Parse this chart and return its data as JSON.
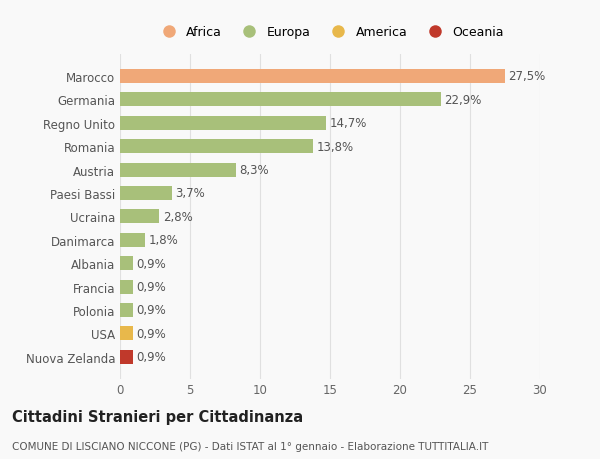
{
  "categories": [
    "Nuova Zelanda",
    "USA",
    "Polonia",
    "Francia",
    "Albania",
    "Danimarca",
    "Ucraina",
    "Paesi Bassi",
    "Austria",
    "Romania",
    "Regno Unito",
    "Germania",
    "Marocco"
  ],
  "values": [
    0.9,
    0.9,
    0.9,
    0.9,
    0.9,
    1.8,
    2.8,
    3.7,
    8.3,
    13.8,
    14.7,
    22.9,
    27.5
  ],
  "labels": [
    "0,9%",
    "0,9%",
    "0,9%",
    "0,9%",
    "0,9%",
    "1,8%",
    "2,8%",
    "3,7%",
    "8,3%",
    "13,8%",
    "14,7%",
    "22,9%",
    "27,5%"
  ],
  "colors": [
    "#c0392b",
    "#e8b84b",
    "#a8c07a",
    "#a8c07a",
    "#a8c07a",
    "#a8c07a",
    "#a8c07a",
    "#a8c07a",
    "#a8c07a",
    "#a8c07a",
    "#a8c07a",
    "#a8c07a",
    "#f0a878"
  ],
  "legend_labels": [
    "Africa",
    "Europa",
    "America",
    "Oceania"
  ],
  "legend_colors": [
    "#f0a878",
    "#a8c07a",
    "#e8b84b",
    "#c0392b"
  ],
  "xlim": [
    0,
    30
  ],
  "xticks": [
    0,
    5,
    10,
    15,
    20,
    25,
    30
  ],
  "title": "Cittadini Stranieri per Cittadinanza",
  "subtitle": "COMUNE DI LISCIANO NICCONE (PG) - Dati ISTAT al 1° gennaio - Elaborazione TUTTITALIA.IT",
  "bg_color": "#f9f9f9",
  "grid_color": "#e0e0e0",
  "bar_height": 0.6,
  "label_fontsize": 8.5,
  "tick_fontsize": 8.5,
  "title_fontsize": 10.5,
  "subtitle_fontsize": 7.5
}
